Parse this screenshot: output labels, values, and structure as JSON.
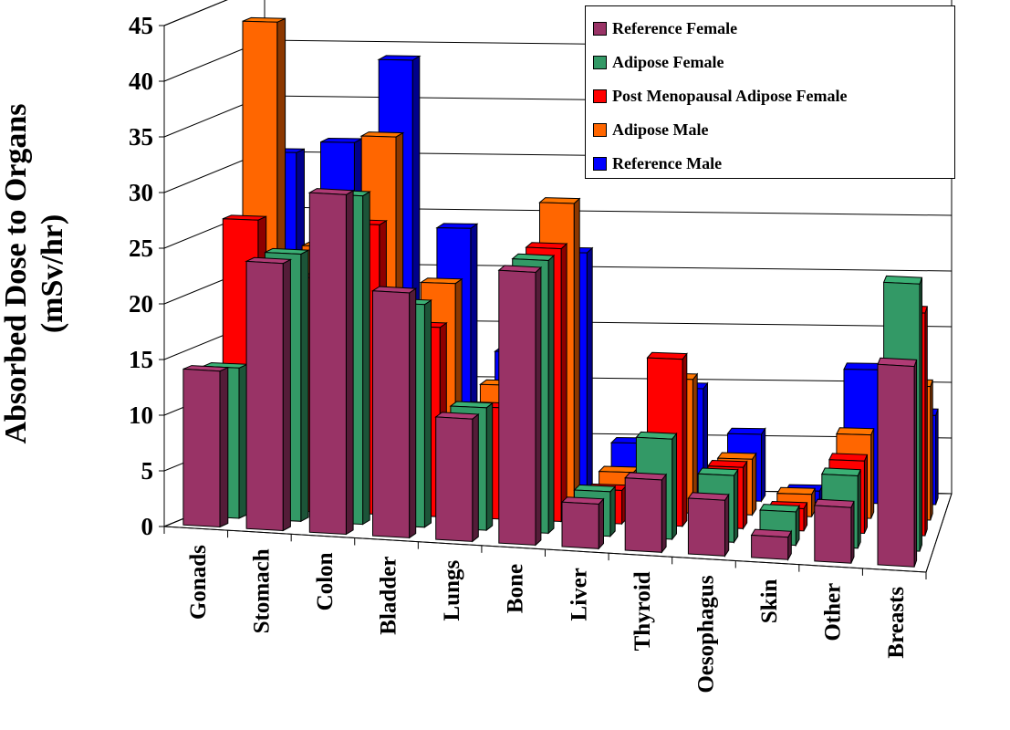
{
  "chart_data": {
    "type": "bar",
    "ylabel": "Absorbed Dose to Organs (mSv/hr)",
    "ylabel_lines": [
      "Absorbed Dose to Organs",
      "(mSv/hr)"
    ],
    "ylim": [
      0,
      45
    ],
    "y_ticks": [
      "0",
      "5",
      "10",
      "15",
      "20",
      "25",
      "30",
      "35",
      "40",
      "45"
    ],
    "grid": true,
    "legend_position": "top-right",
    "categories": [
      "Gonads",
      "Stomach",
      "Colon",
      "Bladder",
      "Lungs",
      "Bone",
      "Liver",
      "Thyroid",
      "Oesophagus",
      "Skin",
      "Other",
      "Breasts"
    ],
    "series": [
      {
        "name": "Reference Female",
        "color": "#993366",
        "values": [
          14,
          24,
          30.5,
          22,
          11,
          24.5,
          4,
          6.5,
          5,
          2,
          5,
          18
        ]
      },
      {
        "name": "Adipose Female",
        "color": "#339966",
        "values": [
          13.5,
          24,
          29.5,
          20,
          11,
          24.5,
          4,
          9,
          6,
          3,
          6.5,
          24
        ]
      },
      {
        "name": "Post Menopausal Adipose Female",
        "color": "#ff0000",
        "values": [
          26,
          21,
          26,
          17,
          10,
          24.5,
          3,
          15,
          5.5,
          2,
          6.5,
          20
        ]
      },
      {
        "name": "Adipose Male",
        "color": "#ff6600",
        "values": [
          43,
          23,
          33,
          20,
          11,
          27.5,
          3.5,
          12,
          5,
          2,
          7.5,
          12
        ]
      },
      {
        "name": "Reference Male",
        "color": "#0000ff",
        "values": [
          30.5,
          31.5,
          39,
          24,
          13,
          22,
          5,
          10,
          6,
          1,
          12,
          8
        ]
      }
    ]
  }
}
